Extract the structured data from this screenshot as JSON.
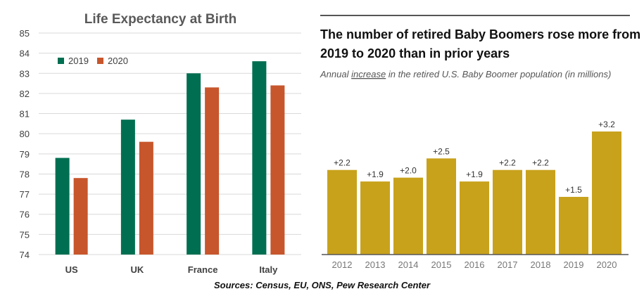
{
  "colors": {
    "series_2019": "#006F51",
    "series_2020": "#C7562C",
    "boomer_bar": "#C9A21C",
    "grid": "#D9D9D9",
    "rule": "#555555"
  },
  "chart_data": [
    {
      "type": "bar",
      "title": "Life Expectancy at Birth",
      "categories": [
        "US",
        "UK",
        "France",
        "Italy"
      ],
      "series": [
        {
          "name": "2019",
          "values": [
            78.8,
            80.7,
            83.0,
            83.6
          ]
        },
        {
          "name": "2020",
          "values": [
            77.8,
            79.6,
            82.3,
            82.4
          ]
        }
      ],
      "ylim": [
        74,
        85
      ],
      "yticks": [
        74,
        75,
        76,
        77,
        78,
        79,
        80,
        81,
        82,
        83,
        84,
        85
      ],
      "xlabel": "",
      "ylabel": "",
      "legend": "top-left",
      "grid": true
    },
    {
      "type": "bar",
      "title": "The number of retired Baby Boomers rose more from 2019 to 2020 than in prior years",
      "title_lines": [
        "The number of retired Baby Boomers rose more from",
        "2019 to 2020 than in prior years"
      ],
      "subtitle_before": "Annual ",
      "subtitle_emph": "increase",
      "subtitle_after": " in the retired U.S. Baby Boomer population (in millions)",
      "categories": [
        "2012",
        "2013",
        "2014",
        "2015",
        "2016",
        "2017",
        "2018",
        "2019",
        "2020"
      ],
      "values": [
        2.2,
        1.9,
        2.0,
        2.5,
        1.9,
        2.2,
        2.2,
        1.5,
        3.2
      ],
      "value_labels": [
        "+2.2",
        "+1.9",
        "+2.0",
        "+2.5",
        "+1.9",
        "+2.2",
        "+2.2",
        "+1.5",
        "+3.2"
      ],
      "ylim": [
        0,
        3.2
      ],
      "grid": false
    }
  ],
  "footer": {
    "sources": "Sources: Census, EU, ONS, Pew Research Center"
  }
}
